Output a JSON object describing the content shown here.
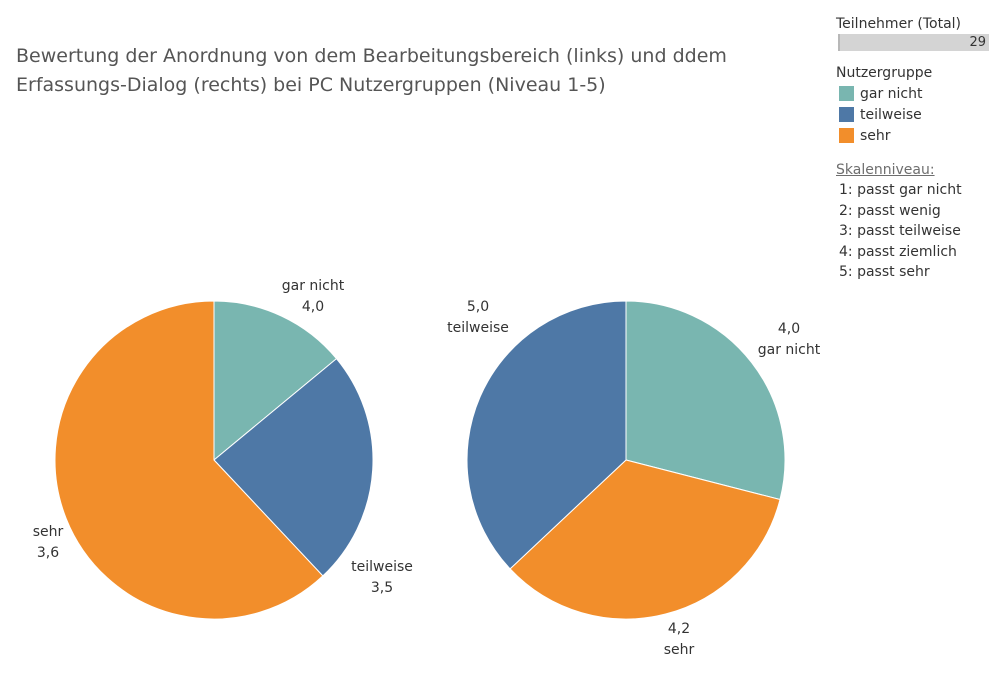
{
  "title": "Bewertung der Anordnung von dem Bearbeitungsbereich (links) und ddem Erfassungs-Dialog (rechts) bei PC Nutzergruppen (Niveau 1-5)",
  "legend": {
    "total_label": "Teilnehmer (Total)",
    "total_value": "29",
    "group_title": "Nutzergruppe",
    "items": [
      {
        "label": "gar nicht",
        "color": "#79b6b0"
      },
      {
        "label": "teilweise",
        "color": "#4e78a6"
      },
      {
        "label": "sehr",
        "color": "#f28e2b"
      }
    ],
    "scale_title": "Skalenniveau:",
    "scale_items": [
      "1:  passt gar nicht",
      "2:  passt wenig",
      "3:  passt teilweise",
      "4:  passt ziemlich",
      "5:  passt sehr"
    ]
  },
  "chart_data": [
    {
      "type": "pie",
      "slices": [
        {
          "group": "gar nicht",
          "share": 0.14,
          "rating": "4,0",
          "color": "#79b6b0"
        },
        {
          "group": "teilweise",
          "share": 0.24,
          "rating": "3,5",
          "color": "#4e78a6"
        },
        {
          "group": "sehr",
          "share": 0.62,
          "rating": "3,6",
          "color": "#f28e2b"
        }
      ]
    },
    {
      "type": "pie",
      "slices": [
        {
          "group": "gar nicht",
          "share": 0.29,
          "rating": "4,0",
          "color": "#79b6b0"
        },
        {
          "group": "sehr",
          "share": 0.34,
          "rating": "4,2",
          "color": "#f28e2b"
        },
        {
          "group": "teilweise",
          "share": 0.37,
          "rating": "5,0",
          "color": "#4e78a6"
        }
      ]
    }
  ]
}
